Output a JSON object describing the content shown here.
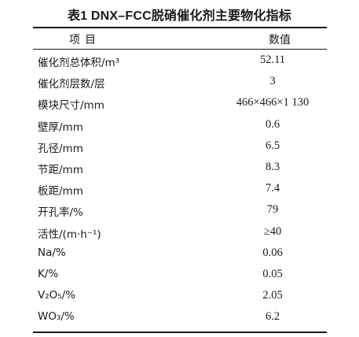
{
  "table": {
    "title": "表1  DNX–FCC脱硝催化剂主要物化指标",
    "header": {
      "item": "项目",
      "value": "数值"
    },
    "rows": [
      {
        "label": "催化剂总体积/m³",
        "value": "52.11"
      },
      {
        "label": "催化剂层数/层",
        "value": "3"
      },
      {
        "label": "模块尺寸/mm",
        "value": "466×466×1 130"
      },
      {
        "label": "壁厚/mm",
        "value": "0.6"
      },
      {
        "label": "孔径/mm",
        "value": "6.5"
      },
      {
        "label": "节距/mm",
        "value": "8.3"
      },
      {
        "label": "板距/mm",
        "value": "7.4"
      },
      {
        "label": "开孔率/%",
        "value": "79"
      },
      {
        "label": "活性/(m·h⁻¹)",
        "value": "≥40"
      },
      {
        "label": "Na/%",
        "value": "0.06"
      },
      {
        "label": "K/%",
        "value": "0.05"
      },
      {
        "label": "V₂O₅/%",
        "value": "2.05"
      },
      {
        "label": "WO₃/%",
        "value": "6.2"
      }
    ]
  }
}
